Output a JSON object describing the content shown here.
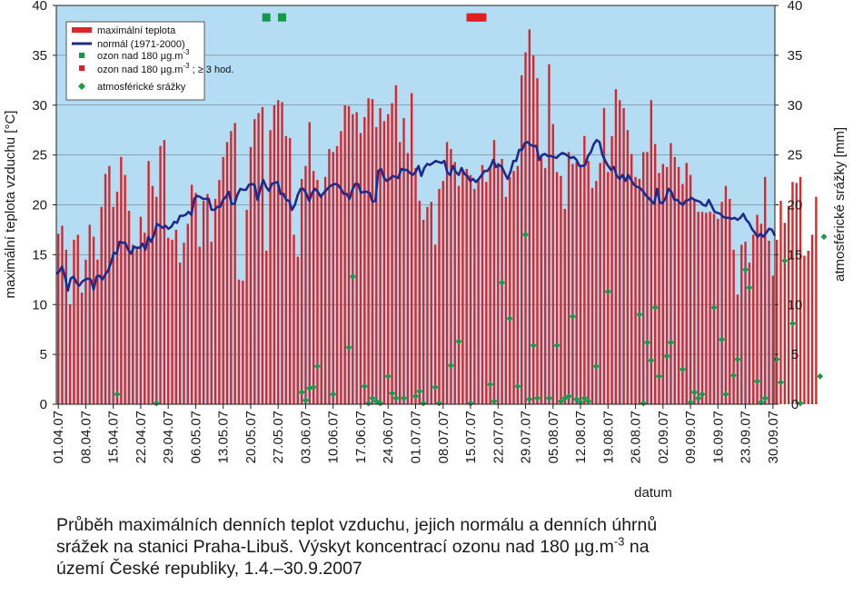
{
  "chart_data": {
    "type": "bar",
    "title": "",
    "xlabel": "datum",
    "ylabel": "maximální teplota vzduchu [°C]",
    "y2label": "atmosférické srážky [mm]",
    "ylim": [
      0,
      40
    ],
    "y2lim": [
      0,
      40
    ],
    "yticks": [
      0,
      5,
      10,
      15,
      20,
      25,
      30,
      35,
      40
    ],
    "date_start": "01.04.07",
    "date_end": "30.09.07",
    "xtick_labels": [
      "01.04.07",
      "08.04.07",
      "15.04.07",
      "22.04.07",
      "29.04.07",
      "06.05.07",
      "13.05.07",
      "20.05.07",
      "27.05.07",
      "03.06.07",
      "10.06.07",
      "17.06.07",
      "24.06.07",
      "01.07.07",
      "08.07.07",
      "15.07.07",
      "22.07.07",
      "29.07.07",
      "05.08.07",
      "12.08.07",
      "19.08.07",
      "26.08.07",
      "02.09.07",
      "09.09.07",
      "16.09.07",
      "23.09.07",
      "30.09.07"
    ],
    "grid": true,
    "legend_position": "top-left",
    "legend": {
      "max_temp": "maximální teplota",
      "normal": "normál (1971-2000)",
      "ozone180_pre": "ozon nad 180 µg.m",
      "ozone180_sup": "-3",
      "ozone3h_pre": "ozon nad 180 µg.m",
      "ozone3h_sup": "-3",
      "ozone3h_post": " ; ≥ 3 hod.",
      "precip": "atmosférické srážky"
    },
    "colors": {
      "background": "#b4dcf2",
      "max_temp": "#d9262a",
      "normal": "#1f2b8a",
      "ozone180": "#14994a",
      "ozone3h": "#e02020",
      "precip": "#1a9a4a"
    },
    "series": [
      {
        "name": "maximální teplota",
        "kind": "bar",
        "values": [
          17.1,
          17.9,
          15.5,
          10.0,
          16.5,
          17.0,
          11.2,
          14.5,
          18.0,
          16.8,
          14.5,
          19.8,
          23.1,
          23.9,
          19.8,
          21.3,
          24.8,
          23.0,
          19.4,
          16.0,
          15.7,
          18.8,
          17.2,
          24.4,
          21.9,
          20.8,
          25.9,
          26.5,
          16.7,
          16.5,
          17.5,
          14.2,
          16.2,
          18.1,
          22.0,
          21.2,
          15.8,
          20.4,
          21.1,
          16.3,
          20.6,
          22.5,
          24.8,
          26.3,
          27.4,
          28.2,
          12.5,
          12.4,
          19.5,
          25.8,
          28.6,
          29.2,
          29.8,
          15.4,
          27.5,
          30.0,
          30.5,
          30.3,
          26.9,
          26.7,
          17.0,
          14.8,
          22.6,
          23.9,
          28.3,
          23.4,
          22.5,
          21.1,
          22.8,
          25.6,
          25.3,
          25.9,
          27.4,
          30.0,
          29.9,
          29.1,
          29.3,
          27.2,
          28.8,
          30.7,
          30.6,
          27.8,
          29.7,
          28.4,
          29.1,
          30.2,
          32.0,
          26.3,
          28.7,
          25.2,
          31.2,
          23.7,
          20.4,
          18.5,
          19.8,
          20.3,
          16.0,
          21.6,
          22.4,
          26.3,
          25.6,
          24.3,
          21.9,
          23.4,
          23.6,
          23.0,
          21.6,
          22.5,
          24.0,
          22.3,
          23.7,
          26.5,
          24.2,
          24.6,
          20.8,
          22.8,
          23.4,
          23.9,
          33.0,
          35.3,
          37.6,
          35.0,
          32.7,
          24.7,
          23.7,
          34.1,
          28.1,
          23.3,
          22.9,
          19.6,
          25.3,
          24.1,
          24.3,
          23.9,
          26.9,
          24.4,
          21.7,
          22.4,
          24.2,
          29.7,
          23.3,
          26.9,
          31.6,
          30.5,
          29.7,
          27.5,
          25.1,
          22.8,
          22.6,
          25.3,
          25.3,
          30.5,
          26.1,
          23.2,
          24.1,
          23.8,
          26.2,
          24.8,
          23.8,
          22.1,
          24.2,
          23.0,
          20.6,
          19.3,
          19.3,
          19.2,
          19.3,
          19.1,
          18.6,
          20.3,
          21.9,
          20.6,
          15.5,
          11.0,
          16.0,
          16.3,
          14.2,
          17.0,
          19.0,
          18.1,
          22.8,
          16.4,
          12.9,
          16.5,
          20.4,
          18.2,
          19.9,
          22.3,
          22.2,
          22.8,
          14.9,
          15.4,
          17.0,
          20.8
        ]
      },
      {
        "name": "normál (1971-2000)",
        "kind": "line",
        "values": [
          13.1,
          13.3,
          13.8,
          12.8,
          11.4,
          12.6,
          12.8,
          12.2,
          11.9,
          12.3,
          12.5,
          12.6,
          12.5,
          11.5,
          12.8,
          12.9,
          12.5,
          13.0,
          13.4,
          14.2,
          15.2,
          15.1,
          16.3,
          16.2,
          16.2,
          15.5,
          15.1,
          15.8,
          15.7,
          15.7,
          16.1,
          15.5,
          16.8,
          16.3,
          17.0,
          18.1,
          17.9,
          17.7,
          17.9,
          17.6,
          17.8,
          18.3,
          18.2,
          18.9,
          18.9,
          19.0,
          19.3,
          19.0,
          20.6,
          20.9,
          20.8,
          20.6,
          20.6,
          20.6,
          19.5,
          19.5,
          19.8,
          19.8,
          20.5,
          20.8,
          21.3,
          20.1,
          20.1,
          21.0,
          21.6,
          21.5,
          21.5,
          22.0,
          22.1,
          22.0,
          20.5,
          21.6,
          22.5,
          21.8,
          21.4,
          22.1,
          22.2,
          22.3,
          21.1,
          21.1,
          20.5,
          20.4,
          19.5,
          20.0,
          21.0,
          21.6,
          21.6,
          21.1,
          20.4,
          21.2,
          21.6,
          21.3,
          20.8,
          21.2,
          21.5,
          21.8,
          22.0,
          22.1,
          22.0,
          21.6,
          21.1,
          21.1,
          20.6,
          21.5,
          22.1,
          22.1,
          21.2,
          21.3,
          21.3,
          21.2,
          20.3,
          20.4,
          23.4,
          23.6,
          22.7,
          22.4,
          22.6,
          22.9,
          22.8,
          22.7,
          23.6,
          23.5,
          23.5,
          23.2,
          23.0,
          23.3,
          23.9,
          22.9,
          23.7,
          24.1,
          24.0,
          24.2,
          24.4,
          24.3,
          24.2,
          24.4,
          23.3,
          23.0,
          23.9,
          23.3,
          23.0,
          23.7,
          23.1,
          22.9,
          22.4,
          22.6,
          22.3,
          22.6,
          23.0,
          23.4,
          23.4,
          23.8,
          24.5,
          23.8,
          24.0,
          23.8,
          23.2,
          22.6,
          23.3,
          24.4,
          24.4,
          25.5,
          25.5,
          26.2,
          26.3,
          26.0,
          25.9,
          25.9,
          24.5,
          25.0,
          25.1,
          24.9,
          24.9,
          24.8,
          24.7,
          25.0,
          25.2,
          25.1,
          24.9,
          24.7,
          24.8,
          24.5,
          23.9,
          23.9,
          24.0,
          24.9,
          25.3,
          26.1,
          26.5,
          26.3,
          25.0,
          24.4,
          23.9,
          23.5,
          23.8,
          22.9,
          22.6,
          23.0,
          22.4,
          23.0,
          22.5,
          22.0,
          21.8,
          21.7,
          21.4,
          21.0,
          20.7,
          20.4,
          20.1,
          21.6,
          20.2,
          20.2,
          20.7,
          21.6,
          21.3,
          20.5,
          20.5,
          20.2,
          20.0,
          20.4,
          20.5,
          20.7,
          20.5,
          20.4,
          20.3,
          20.0,
          19.9,
          20.5,
          19.9,
          19.3,
          19.2,
          19.1,
          18.8,
          18.7,
          18.7,
          18.6,
          18.7,
          18.5,
          18.7,
          19.1,
          18.5,
          18.2,
          17.6,
          17.2,
          16.8,
          17.1,
          16.8,
          17.2,
          17.6,
          17.5,
          16.9
        ]
      },
      {
        "name": "ozon nad 180 µg.m-3",
        "kind": "marker",
        "x": [
          "24.05.07",
          "28.05.07"
        ],
        "values": [
          38.8,
          38.8
        ]
      },
      {
        "name": "ozon nad 180 µg.m-3 ; ≥ 3 hod.",
        "kind": "marker",
        "x": [
          "15.07.07",
          "16.07.07",
          "17.07.07",
          "18.07.07"
        ],
        "values": [
          38.8,
          38.8,
          38.8,
          38.8
        ]
      },
      {
        "name": "atmosférické srážky",
        "kind": "marker",
        "x": [
          15,
          25,
          62,
          63,
          64,
          65,
          66,
          70,
          74,
          75,
          78,
          79,
          80,
          81,
          82,
          84,
          85,
          86,
          88,
          91,
          92,
          93,
          96,
          97,
          100,
          102,
          105,
          110,
          111,
          113,
          115,
          117,
          119,
          120,
          121,
          122,
          125,
          127,
          128,
          129,
          130,
          131,
          132,
          133,
          134,
          135,
          137,
          140,
          148,
          149,
          150,
          151,
          152,
          153,
          155,
          156,
          159,
          161,
          162,
          163,
          164,
          167,
          169,
          170,
          172,
          173,
          175,
          176,
          178,
          179,
          180,
          183,
          184,
          185,
          187,
          189,
          194,
          195
        ],
        "values": [
          1.0,
          0.1,
          1.2,
          0.4,
          1.6,
          1.7,
          3.8,
          1.0,
          5.7,
          12.8,
          1.8,
          0.1,
          0.6,
          0.3,
          0.1,
          2.8,
          1.1,
          0.6,
          0.6,
          0.8,
          1.3,
          0.1,
          1.7,
          0.1,
          3.9,
          6.3,
          0.1,
          2.0,
          0.3,
          12.2,
          8.6,
          1.8,
          17.0,
          0.5,
          5.9,
          0.6,
          0.6,
          5.9,
          0.3,
          0.6,
          0.8,
          8.8,
          0.5,
          0.2,
          0.6,
          0.3,
          3.8,
          11.3,
          9.0,
          0.1,
          6.2,
          4.4,
          9.7,
          2.8,
          4.8,
          6.2,
          3.5,
          0.2,
          1.2,
          0.6,
          1.0,
          9.7,
          6.5,
          1.0,
          2.9,
          4.5,
          13.5,
          11.7,
          2.3,
          0.2,
          0.6,
          4.5,
          2.2,
          14.4,
          8.1,
          0.1,
          2.8,
          16.8
        ]
      }
    ]
  },
  "caption": {
    "line1": "Průběh maximálních denních teplot vzduchu, jejich normálu a denních úhrnů",
    "line2_pre": "srážek na stanici Praha-Libuš. Výskyt koncentrací ozonu nad 180 µg.m",
    "line2_sup": "-3",
    "line2_post": " na",
    "line3": "území České republiky, 1.4.–30.9.2007"
  }
}
